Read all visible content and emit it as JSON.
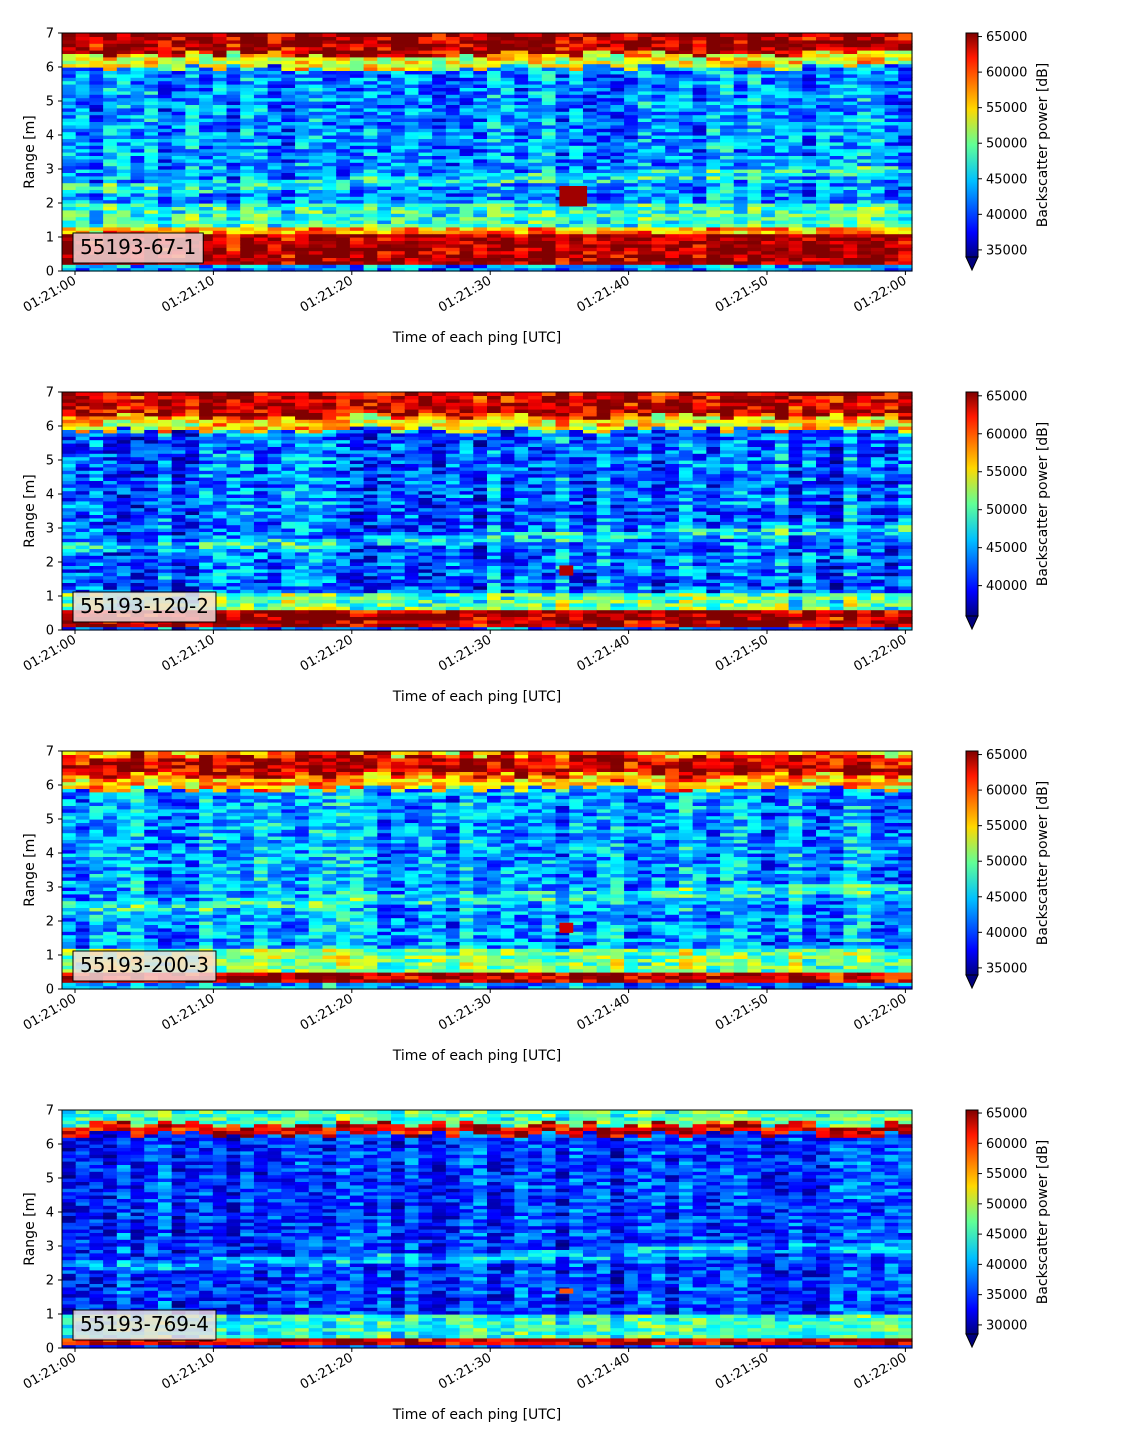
{
  "chart_data": [
    {
      "type": "heatmap",
      "panel_label": "55193-67-1",
      "xlabel": "Time of each ping [UTC]",
      "ylabel": "Range [m]",
      "colorbar_label": "Backscatter power [dB]",
      "x_ticks": [
        "01:21:00",
        "01:21:10",
        "01:21:20",
        "01:21:30",
        "01:21:40",
        "01:21:50",
        "01:22:00"
      ],
      "x_range": [
        "01:21:00",
        "01:22:00"
      ],
      "y_ticks": [
        0,
        1,
        2,
        3,
        4,
        5,
        6,
        7
      ],
      "ylim": [
        0,
        7
      ],
      "colorbar_ticks": [
        35000,
        40000,
        45000,
        50000,
        55000,
        60000,
        65000
      ],
      "clim": [
        34000,
        65500
      ],
      "colormap": "jet",
      "bands": [
        {
          "y0": 0.2,
          "y1": 1.1,
          "level": 64500
        },
        {
          "y0": 1.1,
          "y1": 1.3,
          "level": 56000
        },
        {
          "y0": 1.3,
          "y1": 2.0,
          "level": 47000
        },
        {
          "y0": 6.0,
          "y1": 6.4,
          "level": 53000
        },
        {
          "y0": 6.4,
          "y1": 7.0,
          "level": 64000
        }
      ],
      "background_level": 42000,
      "anomaly": {
        "t0": "01:21:35",
        "t1": "01:21:37",
        "y0": 1.9,
        "y1": 2.5,
        "level": 64500
      }
    },
    {
      "type": "heatmap",
      "panel_label": "55193-120-2",
      "xlabel": "Time of each ping [UTC]",
      "ylabel": "Range [m]",
      "colorbar_label": "Backscatter power [dB]",
      "x_ticks": [
        "01:21:00",
        "01:21:10",
        "01:21:20",
        "01:21:30",
        "01:21:40",
        "01:21:50",
        "01:22:00"
      ],
      "x_range": [
        "01:21:00",
        "01:22:00"
      ],
      "y_ticks": [
        0,
        1,
        2,
        3,
        4,
        5,
        6,
        7
      ],
      "ylim": [
        0,
        7
      ],
      "colorbar_ticks": [
        40000,
        45000,
        50000,
        55000,
        60000,
        65000
      ],
      "clim": [
        36000,
        65500
      ],
      "colormap": "jet",
      "bands": [
        {
          "y0": 0.1,
          "y1": 0.6,
          "level": 64500
        },
        {
          "y0": 0.6,
          "y1": 1.1,
          "level": 50000
        },
        {
          "y0": 5.9,
          "y1": 6.3,
          "level": 55000
        },
        {
          "y0": 6.3,
          "y1": 7.0,
          "level": 63500
        }
      ],
      "background_level": 42500,
      "anomaly": {
        "t0": "01:21:35",
        "t1": "01:21:36",
        "y0": 1.6,
        "y1": 1.9,
        "level": 64000
      }
    },
    {
      "type": "heatmap",
      "panel_label": "55193-200-3",
      "xlabel": "Time of each ping [UTC]",
      "ylabel": "Range [m]",
      "colorbar_label": "Backscatter power [dB]",
      "x_ticks": [
        "01:21:00",
        "01:21:10",
        "01:21:20",
        "01:21:30",
        "01:21:40",
        "01:21:50",
        "01:22:00"
      ],
      "x_range": [
        "01:21:00",
        "01:22:00"
      ],
      "y_ticks": [
        0,
        1,
        2,
        3,
        4,
        5,
        6,
        7
      ],
      "ylim": [
        0,
        7
      ],
      "colorbar_ticks": [
        35000,
        40000,
        45000,
        50000,
        55000,
        60000,
        65000
      ],
      "clim": [
        34000,
        65500
      ],
      "colormap": "jet",
      "bands": [
        {
          "y0": 0.2,
          "y1": 0.45,
          "level": 64000
        },
        {
          "y0": 0.45,
          "y1": 1.2,
          "level": 50000
        },
        {
          "y0": 5.9,
          "y1": 6.3,
          "level": 56000
        },
        {
          "y0": 6.3,
          "y1": 6.9,
          "level": 63500
        },
        {
          "y0": 6.9,
          "y1": 7.0,
          "level": 56000
        }
      ],
      "background_level": 43000,
      "anomaly": {
        "t0": "01:21:35",
        "t1": "01:21:36",
        "y0": 1.65,
        "y1": 1.95,
        "level": 63000
      }
    },
    {
      "type": "heatmap",
      "panel_label": "55193-769-4",
      "xlabel": "Time of each ping [UTC]",
      "ylabel": "Range [m]",
      "colorbar_label": "Backscatter power [dB]",
      "x_ticks": [
        "01:21:00",
        "01:21:10",
        "01:21:20",
        "01:21:30",
        "01:21:40",
        "01:21:50",
        "01:22:00"
      ],
      "x_range": [
        "01:21:00",
        "01:22:00"
      ],
      "y_ticks": [
        0,
        1,
        2,
        3,
        4,
        5,
        6,
        7
      ],
      "ylim": [
        0,
        7
      ],
      "colorbar_ticks": [
        30000,
        35000,
        40000,
        45000,
        50000,
        55000,
        60000,
        65000
      ],
      "clim": [
        28500,
        65500
      ],
      "colormap": "jet",
      "bands": [
        {
          "y0": 0.15,
          "y1": 0.3,
          "level": 62000
        },
        {
          "y0": 0.3,
          "y1": 1.0,
          "level": 44000
        },
        {
          "y0": 6.3,
          "y1": 6.6,
          "level": 62000
        },
        {
          "y0": 6.6,
          "y1": 7.0,
          "level": 45000
        }
      ],
      "background_level": 35000,
      "anomaly": {
        "t0": "01:21:35",
        "t1": "01:21:36",
        "y0": 1.6,
        "y1": 1.75,
        "level": 58000
      }
    }
  ]
}
